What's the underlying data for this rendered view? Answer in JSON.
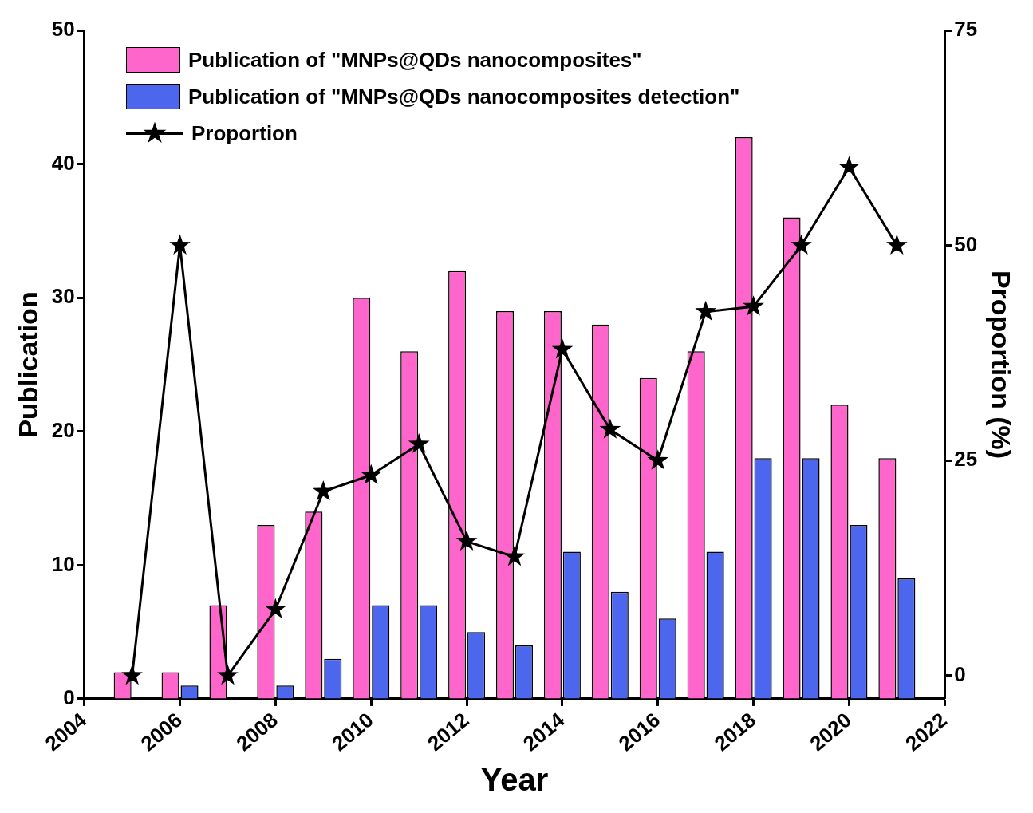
{
  "chart_data": {
    "type": "bar",
    "xlabel": "Year",
    "ylabel": "Publication",
    "y2label": "Proportion (%)",
    "x": [
      2005,
      2006,
      2007,
      2008,
      2009,
      2010,
      2011,
      2012,
      2013,
      2014,
      2015,
      2016,
      2017,
      2018,
      2019,
      2020,
      2021
    ],
    "series": [
      {
        "name": "Publication of \"MNPs@QDs nanocomposites\"",
        "color": "#ff66cc",
        "values": [
          2,
          2,
          7,
          13,
          14,
          30,
          26,
          32,
          29,
          29,
          28,
          24,
          26,
          42,
          36,
          22,
          18
        ]
      },
      {
        "name": "Publication of \"MNPs@QDs nanocomposites detection\"",
        "color": "#4d66ee",
        "values": [
          0,
          1,
          0,
          1,
          3,
          7,
          7,
          5,
          4,
          11,
          8,
          6,
          11,
          18,
          18,
          13,
          9
        ]
      },
      {
        "name": "Proportion",
        "type": "line",
        "axis": "y2",
        "color": "#000000",
        "marker": "star",
        "values": [
          0,
          50,
          0,
          7.7,
          21.4,
          23.3,
          26.9,
          15.6,
          13.8,
          37.9,
          28.6,
          25,
          42.3,
          42.9,
          50,
          59.1,
          50
        ]
      }
    ],
    "xlim": [
      2004,
      2022
    ],
    "xticks": [
      2004,
      2006,
      2008,
      2010,
      2012,
      2014,
      2016,
      2018,
      2020,
      2022
    ],
    "ylim": [
      0,
      50
    ],
    "yticks": [
      0,
      10,
      20,
      30,
      40,
      50
    ],
    "y2lim": [
      -2.7,
      75
    ],
    "y2ticks": [
      0,
      25,
      50,
      75
    ],
    "grid": false,
    "legend": "top left"
  }
}
